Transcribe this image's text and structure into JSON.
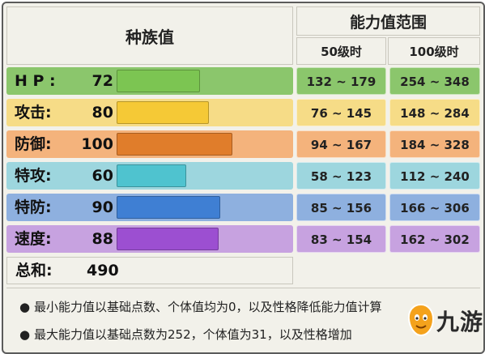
{
  "header": {
    "base_stats_title": "种族值",
    "range_title": "能力值范围",
    "level50_title": "50级时",
    "level100_title": "100级时"
  },
  "stats": [
    {
      "label": "H P :",
      "value": "72",
      "range50": "132 ~ 179",
      "range100": "254 ~ 348",
      "row_color": "#8bc66c",
      "bar_color": "#7cc552"
    },
    {
      "label": "攻击:",
      "value": "80",
      "range50": "76 ~ 145",
      "range100": "148 ~ 284",
      "row_color": "#f6dc87",
      "bar_color": "#f5c936"
    },
    {
      "label": "防御:",
      "value": "100",
      "range50": "94 ~ 167",
      "range100": "184 ~ 328",
      "row_color": "#f4b37c",
      "bar_color": "#e07d2b"
    },
    {
      "label": "特攻:",
      "value": "60",
      "range50": "58 ~ 123",
      "range100": "112 ~ 240",
      "row_color": "#9dd6de",
      "bar_color": "#4fc3cf"
    },
    {
      "label": "特防:",
      "value": "90",
      "range50": "85 ~ 156",
      "range100": "166 ~ 306",
      "row_color": "#8eb0df",
      "bar_color": "#3f7fd3"
    },
    {
      "label": "速度:",
      "value": "88",
      "range50": "83 ~ 154",
      "range100": "162 ~ 302",
      "row_color": "#c7a2e0",
      "bar_color": "#9c4fd1"
    }
  ],
  "total": {
    "label": "总和:",
    "value": "490"
  },
  "notes": [
    "最小能力值以基础点数、个体值均为0，以及性格降低能力值计算",
    "最大能力值以基础点数为252，个体值为31，以及性格增加"
  ],
  "logo": {
    "text": "九游"
  }
}
